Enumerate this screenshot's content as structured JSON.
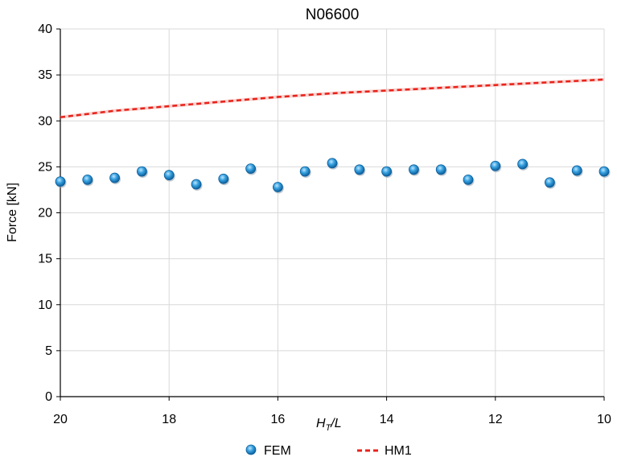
{
  "chart_data": {
    "type": "scatter",
    "title": "N06600",
    "xlabel": {
      "main": "H",
      "sub": "T",
      "rest": "/L"
    },
    "ylabel": "Force [kN]",
    "xlim": [
      20,
      10
    ],
    "ylim": [
      0,
      40
    ],
    "x_ticks": [
      "20",
      "18",
      "16",
      "14",
      "12",
      "10"
    ],
    "x_tick_values": [
      20,
      18,
      16,
      14,
      12,
      10
    ],
    "y_ticks": [
      "0",
      "5",
      "10",
      "15",
      "20",
      "25",
      "30",
      "35",
      "40"
    ],
    "y_tick_values": [
      0,
      5,
      10,
      15,
      20,
      25,
      30,
      35,
      40
    ],
    "grid": true,
    "legend_position": "bottom",
    "series": [
      {
        "name": "FEM",
        "kind": "marker",
        "color": "#1f8ad0",
        "x": [
          20,
          19.5,
          19,
          18.5,
          18,
          17.5,
          17,
          16.5,
          16,
          15.5,
          15,
          14.5,
          14,
          13.5,
          13,
          12.5,
          12,
          11.5,
          11,
          10.5,
          10
        ],
        "y": [
          23.4,
          23.6,
          23.8,
          24.5,
          24.1,
          23.1,
          23.7,
          24.8,
          22.8,
          24.5,
          25.4,
          24.7,
          24.5,
          24.7,
          24.7,
          23.6,
          25.1,
          25.3,
          23.3,
          24.6,
          24.5
        ]
      },
      {
        "name": "HM1",
        "kind": "dashed-line",
        "color": "#e8221a",
        "x": [
          20,
          19,
          18,
          17,
          16,
          15,
          14,
          13,
          12,
          11,
          10
        ],
        "y": [
          30.4,
          31.1,
          31.6,
          32.1,
          32.6,
          33.0,
          33.3,
          33.6,
          33.9,
          34.2,
          34.5
        ]
      }
    ]
  }
}
